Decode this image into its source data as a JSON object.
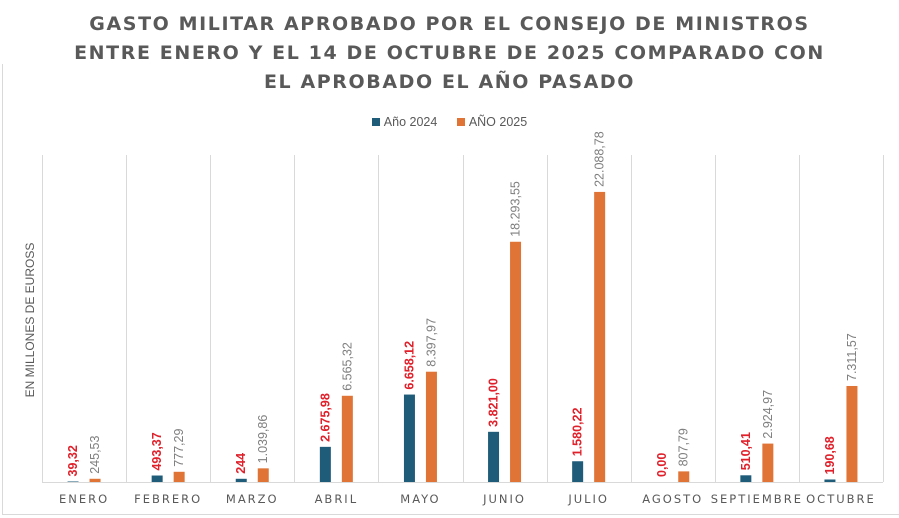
{
  "chart_data": {
    "type": "bar",
    "title_lines": [
      "GASTO MILITAR APROBADO POR EL CONSEJO DE MINISTROS",
      "ENTRE ENERO Y EL 14 DE OCTUBRE DE 2025 COMPARADO CON",
      "EL APROBADO EL AÑO PASADO"
    ],
    "xlabel": "",
    "ylabel": "EN MILLONES DE EUROSS",
    "ylim": [
      0,
      25000
    ],
    "grid": "vertical category separators",
    "legend_position": "top-center",
    "categories": [
      "ENERO",
      "FEBRERO",
      "MARZO",
      "ABRIL",
      "MAYO",
      "JUNIO",
      "JULIO",
      "AGOSTO",
      "SEPTIEMBRE",
      "OCTUBRE"
    ],
    "series": [
      {
        "name": "Año 2024",
        "color": "#1f5c7a",
        "label_color": "#e0202a",
        "values": [
          39.32,
          493.37,
          244,
          2675.98,
          6658.12,
          3821.0,
          1580.22,
          0.0,
          510.41,
          190.68
        ],
        "labels": [
          "39,32",
          "493,37",
          "244",
          "2.675,98",
          "6.658,12",
          "3.821,00",
          "1.580,22",
          "0,00",
          "510,41",
          "190,68"
        ]
      },
      {
        "name": "AÑO 2025",
        "color": "#e07436",
        "label_color": "#7f7f7f",
        "values": [
          245.53,
          777.29,
          1039.86,
          6565.32,
          8397.97,
          18293.55,
          22088.78,
          807.79,
          2924.97,
          7311.57
        ],
        "labels": [
          "245,53",
          "777,29",
          "1.039,86",
          "6.565,32",
          "8.397,97",
          "18.293,55",
          "22.088,78",
          "807,79",
          "2.924,97",
          "7.311,57"
        ]
      }
    ]
  }
}
